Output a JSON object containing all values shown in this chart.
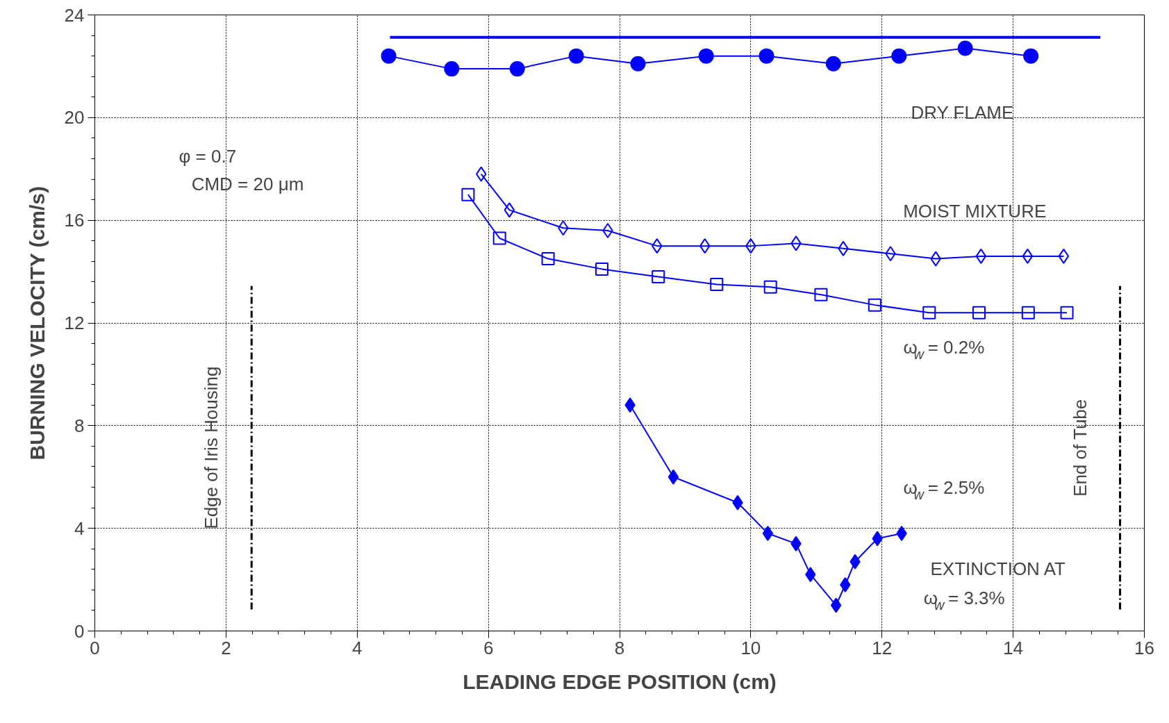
{
  "chart_data": {
    "type": "line",
    "xlabel": "LEADING EDGE POSITION (cm)",
    "ylabel": "BURNING VELOCITY (cm/s)",
    "xlim": [
      0,
      16
    ],
    "ylim": [
      0,
      24
    ],
    "xticks": [
      0,
      2,
      4,
      6,
      8,
      10,
      12,
      14,
      16
    ],
    "yticks": [
      0,
      4,
      8,
      12,
      16,
      20,
      24
    ],
    "grid": true,
    "line_style": "solid",
    "series": [
      {
        "color": "#0000ff",
        "marker": "none",
        "x": [
          4.5,
          15.33
        ],
        "values": [
          23.13,
          23.13
        ]
      },
      {
        "color": "#0000ff",
        "marker": "circle",
        "x": [
          4.48,
          5.44,
          6.44,
          7.34,
          8.28,
          9.32,
          10.24,
          11.26,
          12.26,
          13.27,
          14.27
        ],
        "values": [
          22.4,
          21.9,
          21.9,
          22.4,
          22.1,
          22.4,
          22.4,
          22.1,
          22.4,
          22.7,
          22.4
        ]
      },
      {
        "color": "#0000ff",
        "marker": "diamond",
        "x": [
          5.89,
          6.32,
          7.14,
          7.82,
          8.57,
          9.3,
          10.0,
          10.69,
          11.41,
          12.13,
          12.82,
          13.51,
          14.22,
          14.77
        ],
        "values": [
          17.8,
          16.4,
          15.7,
          15.6,
          15.0,
          15.0,
          15.0,
          15.1,
          14.9,
          14.7,
          14.5,
          14.6,
          14.6,
          14.6
        ]
      },
      {
        "color": "#0000ff",
        "marker": "square",
        "x": [
          5.69,
          6.17,
          6.91,
          7.73,
          8.59,
          9.48,
          10.3,
          11.07,
          11.89,
          12.72,
          13.48,
          14.23,
          14.82
        ],
        "values": [
          17.0,
          15.3,
          14.5,
          14.1,
          13.8,
          13.5,
          13.4,
          13.1,
          12.7,
          12.4,
          12.4,
          12.4,
          12.4
        ]
      },
      {
        "color": "#0000ff",
        "marker": "diamond",
        "x": [
          8.16,
          8.82,
          9.8,
          10.26,
          10.69,
          10.91,
          11.3,
          11.44,
          11.59,
          11.93,
          12.3
        ],
        "values": [
          8.8,
          6.0,
          5.0,
          3.8,
          3.4,
          2.2,
          1.0,
          1.8,
          2.7,
          3.6,
          3.8
        ]
      }
    ],
    "ref_lines": [
      {
        "axis": "x",
        "value": 2.39,
        "label": "Edge of Iris Housing",
        "color": "#000000",
        "line_style": "dashdot"
      },
      {
        "axis": "x",
        "value": 15.63,
        "label": "End of Tube",
        "color": "#000000",
        "line_style": "dashdot"
      }
    ],
    "annotations": [
      "DRY FLAME",
      "MOIST MIXTURE",
      "ω$_{w}$ = 0.2%",
      "ω$_{w}$ = 2.5%",
      "EXTINCTION AT",
      "ω$_{w}$ = 3.3%",
      "φ = 0.7",
      "CMD = 20 μm"
    ]
  }
}
